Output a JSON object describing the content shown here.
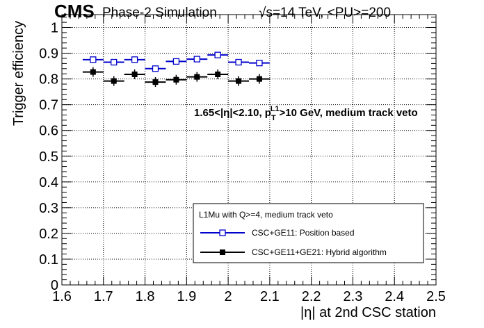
{
  "header": {
    "experiment": "CMS",
    "label": "Phase-2 Simulation",
    "energy_sqrt": "√",
    "energy_rest": "s=14 TeV, <PU>=200"
  },
  "annotation": {
    "text_part1": "1.65<|η|<2.10, p",
    "sub": "T",
    "sup": "L1",
    "text_part2": ">10 GeV, medium track veto"
  },
  "legend": {
    "title": "L1Mu with Q>=4, medium track veto",
    "placement": "lower-right"
  },
  "colors": {
    "series_position": "#0000cc",
    "series_hybrid": "#000000"
  },
  "chart_data": {
    "type": "scatter",
    "xlabel": "|η| at 2nd CSC station",
    "ylabel": "Trigger efficiency",
    "xlim": [
      1.6,
      2.5
    ],
    "ylim": [
      0,
      1.05
    ],
    "grid": true,
    "x_ticks": [
      "1.6",
      "1.7",
      "1.8",
      "1.9",
      "2",
      "2.1",
      "2.2",
      "2.3",
      "2.4",
      "2.5"
    ],
    "y_ticks": [
      "0",
      "0.1",
      "0.2",
      "0.3",
      "0.4",
      "0.5",
      "0.6",
      "0.7",
      "0.8",
      "0.9",
      "1"
    ],
    "bin_half_width": 0.025,
    "series": [
      {
        "name": "CSC+GE11: Position based",
        "marker": "open-square",
        "x": [
          1.675,
          1.725,
          1.775,
          1.825,
          1.875,
          1.925,
          1.975,
          2.025,
          2.075
        ],
        "values": [
          0.875,
          0.865,
          0.875,
          0.84,
          0.868,
          0.877,
          0.893,
          0.865,
          0.862
        ]
      },
      {
        "name": "CSC+GE11+GE21: Hybrid algorithm",
        "marker": "filled-square",
        "x": [
          1.675,
          1.725,
          1.775,
          1.825,
          1.875,
          1.925,
          1.975,
          2.025,
          2.075
        ],
        "values": [
          0.827,
          0.792,
          0.818,
          0.788,
          0.797,
          0.808,
          0.818,
          0.792,
          0.8
        ]
      }
    ]
  }
}
